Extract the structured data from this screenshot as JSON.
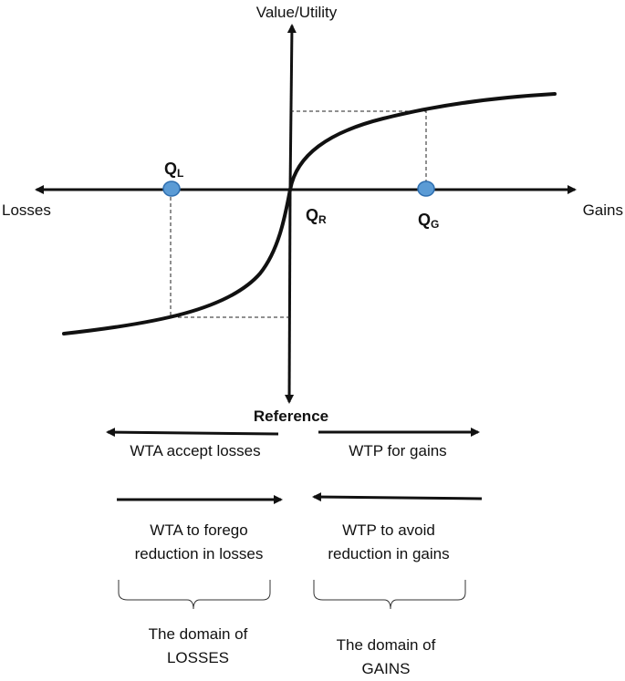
{
  "axes": {
    "y_label": "Value/Utility",
    "x_left_label": "Losses",
    "x_right_label": "Gains",
    "reference_label": "Reference"
  },
  "points": {
    "ql": {
      "main": "Q",
      "sub": "L"
    },
    "qr": {
      "main": "Q",
      "sub": "R"
    },
    "qg": {
      "main": "Q",
      "sub": "G"
    }
  },
  "arrows": {
    "wta_accept_losses": "WTA accept losses",
    "wtp_for_gains": "WTP for gains",
    "wta_forego_line1": "WTA to forego",
    "wta_forego_line2": "reduction in losses",
    "wtp_avoid_line1": "WTP to avoid",
    "wtp_avoid_line2": "reduction in gains"
  },
  "domains": {
    "losses_line1": "The domain of",
    "losses_line2": "LOSSES",
    "gains_line1": "The domain of",
    "gains_line2": "GAINS"
  },
  "colors": {
    "point_fill": "#5b9bd5",
    "line": "#111111"
  }
}
